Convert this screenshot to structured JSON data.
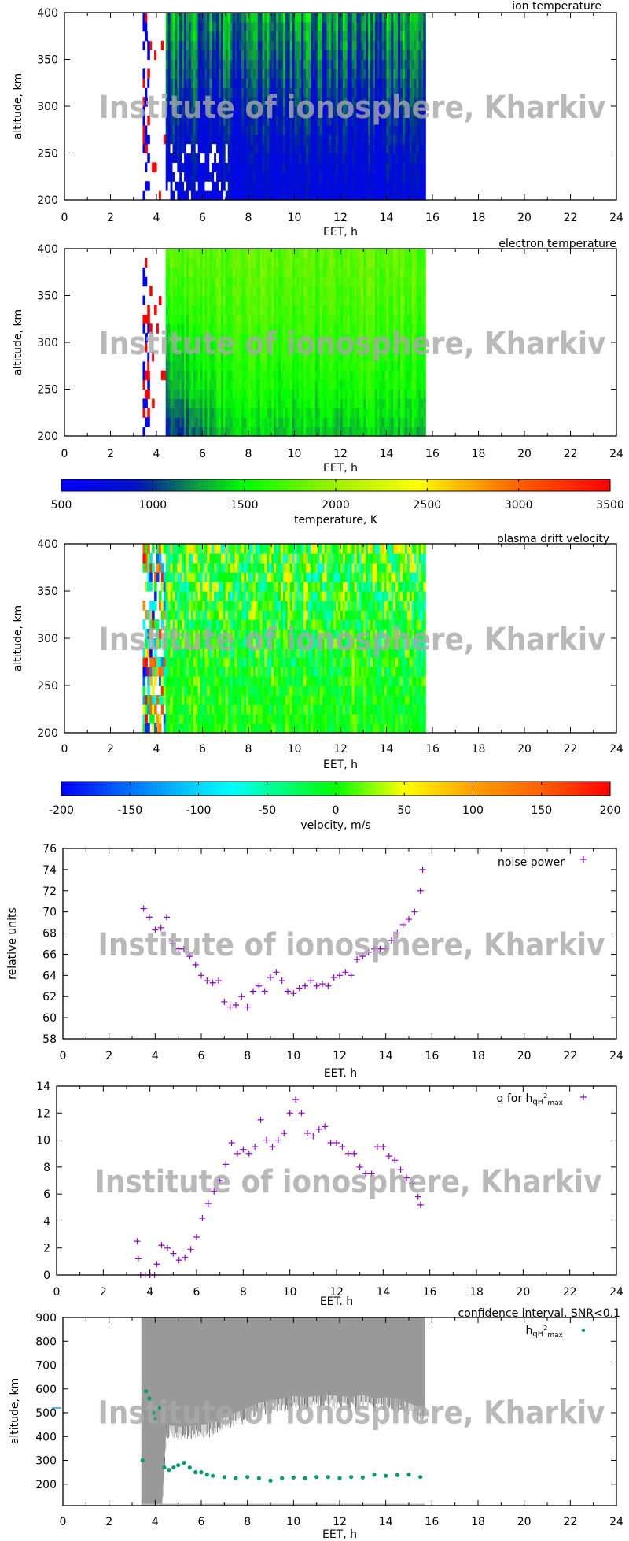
{
  "watermark": "Institute of ionosphere, Kharkiv",
  "chart_data": [
    {
      "type": "heatmap",
      "title": "ion temperature",
      "xlabel": "EET, h",
      "ylabel": "altitude, km",
      "xlim": [
        0,
        24
      ],
      "ylim": [
        200,
        400
      ],
      "xticks": [
        0,
        2,
        4,
        6,
        8,
        10,
        12,
        14,
        16,
        18,
        20,
        22,
        24
      ],
      "yticks": [
        200,
        250,
        300,
        350,
        400
      ],
      "data_time_range_h": [
        3.4,
        15.7
      ],
      "colorbar": "temperature",
      "profile": {
        "altitude_km": [
          200,
          250,
          300,
          350,
          400
        ],
        "typical_value": [
          750,
          850,
          950,
          1100,
          1250
        ]
      }
    },
    {
      "type": "heatmap",
      "title": "electron temperature",
      "xlabel": "EET, h",
      "ylabel": "altitude, km",
      "xlim": [
        0,
        24
      ],
      "ylim": [
        200,
        400
      ],
      "xticks": [
        0,
        2,
        4,
        6,
        8,
        10,
        12,
        14,
        16,
        18,
        20,
        22,
        24
      ],
      "yticks": [
        200,
        250,
        300,
        350,
        400
      ],
      "data_time_range_h": [
        3.4,
        15.7
      ],
      "colorbar": "temperature",
      "profile": {
        "altitude_km": [
          200,
          250,
          300,
          350,
          400
        ],
        "typical_value": [
          1350,
          1550,
          1650,
          1750,
          1800
        ]
      }
    },
    {
      "type": "colorbar",
      "label": "temperature, K",
      "range": [
        500,
        3500
      ],
      "ticks": [
        500,
        1000,
        1500,
        2000,
        2500,
        3000,
        3500
      ],
      "colormap": [
        [
          500,
          "#0000ff"
        ],
        [
          900,
          "#0010c8"
        ],
        [
          1000,
          "#003090"
        ],
        [
          1250,
          "#10a040"
        ],
        [
          1500,
          "#00ff00"
        ],
        [
          2000,
          "#a0f000"
        ],
        [
          2450,
          "#ffff00"
        ],
        [
          2600,
          "#ffd000"
        ],
        [
          3000,
          "#ff6000"
        ],
        [
          3500,
          "#ff0000"
        ]
      ]
    },
    {
      "type": "heatmap",
      "title": "plasma drift velocity",
      "xlabel": "EET, h",
      "ylabel": "altitude, km",
      "xlim": [
        0,
        24
      ],
      "ylim": [
        200,
        400
      ],
      "xticks": [
        0,
        2,
        4,
        6,
        8,
        10,
        12,
        14,
        16,
        18,
        20,
        22,
        24
      ],
      "yticks": [
        200,
        250,
        300,
        350,
        400
      ],
      "data_time_range_h": [
        3.4,
        15.7
      ],
      "colorbar": "velocity",
      "profile": {
        "altitude_km": [
          200,
          250,
          300,
          350,
          400
        ],
        "typical_value": [
          0,
          -5,
          -10,
          -5,
          0
        ]
      }
    },
    {
      "type": "colorbar",
      "label": "velocity, m/s",
      "range": [
        -200,
        200
      ],
      "ticks": [
        -200,
        -150,
        -100,
        -50,
        0,
        50,
        100,
        150,
        200
      ],
      "colormap": [
        [
          -200,
          "#0000ff"
        ],
        [
          -150,
          "#0070ff"
        ],
        [
          -100,
          "#00d8ff"
        ],
        [
          -75,
          "#00ffff"
        ],
        [
          -50,
          "#00ffa0"
        ],
        [
          0,
          "#00ff00"
        ],
        [
          50,
          "#ffff00"
        ],
        [
          100,
          "#ffa000"
        ],
        [
          150,
          "#ff6000"
        ],
        [
          200,
          "#ff0000"
        ]
      ]
    },
    {
      "type": "scatter",
      "xlabel": "EET. h",
      "ylabel": "relative units",
      "xlim": [
        0,
        24
      ],
      "ylim": [
        58,
        76
      ],
      "xticks": [
        0,
        2,
        4,
        6,
        8,
        10,
        12,
        14,
        16,
        18,
        20,
        22,
        24
      ],
      "yticks": [
        58,
        60,
        62,
        64,
        66,
        68,
        70,
        72,
        74,
        76
      ],
      "legend_position": "top-right",
      "series": [
        {
          "name": "noise power",
          "color": "#9400d3",
          "marker": "plus",
          "x": [
            3.5,
            3.75,
            4.0,
            4.25,
            4.5,
            4.75,
            5.0,
            5.25,
            5.5,
            5.75,
            6.0,
            6.25,
            6.5,
            6.75,
            7.0,
            7.25,
            7.5,
            7.75,
            8.0,
            8.25,
            8.5,
            8.75,
            9.0,
            9.25,
            9.5,
            9.75,
            10.0,
            10.25,
            10.5,
            10.75,
            11.0,
            11.25,
            11.5,
            11.75,
            12.0,
            12.25,
            12.5,
            12.75,
            13.0,
            13.25,
            13.5,
            13.75,
            14.0,
            14.25,
            14.5,
            14.75,
            15.0,
            15.25,
            15.5,
            15.6
          ],
          "y": [
            70.3,
            69.5,
            68.3,
            68.5,
            69.5,
            67.0,
            66.5,
            66.5,
            65.8,
            65.0,
            64.0,
            63.5,
            63.3,
            63.5,
            61.5,
            61.0,
            61.2,
            62.0,
            61.0,
            62.5,
            63.0,
            62.5,
            63.8,
            64.3,
            63.5,
            62.5,
            62.3,
            62.8,
            63.0,
            63.5,
            63.0,
            63.2,
            63.0,
            63.8,
            64.0,
            64.3,
            64.0,
            65.5,
            65.8,
            66.2,
            66.5,
            66.5,
            66.5,
            67.3,
            68.0,
            68.8,
            69.3,
            70.0,
            72.0,
            74.0
          ]
        }
      ]
    },
    {
      "type": "scatter",
      "xlabel": "EET. h",
      "xlim": [
        0,
        24
      ],
      "ylim": [
        0,
        14
      ],
      "xticks": [
        0,
        2,
        4,
        6,
        8,
        10,
        12,
        14,
        16,
        18,
        20,
        22,
        24
      ],
      "yticks": [
        0,
        2,
        4,
        6,
        8,
        10,
        12,
        14
      ],
      "legend_position": "top-right",
      "series": [
        {
          "name": "q for h",
          "name_sub": "qH",
          "name_sup": "2",
          "name_sub2": "max",
          "color": "#9400d3",
          "marker": "plus",
          "x": [
            3.45,
            3.5,
            3.6,
            3.8,
            4.0,
            4.2,
            4.3,
            4.5,
            4.75,
            5.0,
            5.25,
            5.5,
            5.75,
            6.0,
            6.25,
            6.5,
            6.75,
            7.0,
            7.25,
            7.5,
            7.75,
            8.0,
            8.25,
            8.5,
            8.75,
            9.0,
            9.25,
            9.5,
            9.75,
            10.0,
            10.25,
            10.5,
            10.75,
            11.0,
            11.25,
            11.5,
            11.75,
            12.0,
            12.25,
            12.5,
            12.75,
            13.0,
            13.25,
            13.5,
            13.75,
            14.0,
            14.25,
            14.5,
            14.75,
            15.0,
            15.25,
            15.5,
            15.6
          ],
          "y": [
            2.5,
            1.2,
            0,
            0,
            0,
            0,
            0.8,
            2.2,
            2.0,
            1.6,
            1.1,
            1.3,
            1.9,
            2.8,
            4.2,
            5.3,
            6.2,
            7.0,
            8.2,
            9.8,
            9.0,
            9.3,
            9.0,
            9.5,
            11.5,
            10.0,
            9.5,
            10.0,
            10.5,
            12.0,
            13.0,
            12.0,
            10.5,
            10.3,
            10.8,
            11.0,
            9.8,
            9.8,
            9.5,
            9.0,
            9.0,
            8.0,
            7.5,
            7.5,
            9.5,
            9.5,
            8.8,
            8.5,
            7.8,
            7.2,
            6.8,
            5.8,
            5.2
          ]
        }
      ]
    },
    {
      "type": "scatter",
      "title": "confidence interval, SNR<0.1",
      "xlabel": "EET, h",
      "ylabel": "altitude, km",
      "xlim": [
        0,
        24
      ],
      "ylim": [
        110,
        900
      ],
      "xticks": [
        0,
        2,
        4,
        6,
        8,
        10,
        12,
        14,
        16,
        18,
        20,
        22,
        24
      ],
      "yticks": [
        200,
        300,
        400,
        500,
        600,
        700,
        800,
        900
      ],
      "legend_position": "top-right",
      "confidence_interval": {
        "color": "#999999",
        "x": [
          3.4,
          3.6,
          3.8,
          4.0,
          4.3,
          4.5,
          5.0,
          5.5,
          6.0,
          6.5,
          7.0,
          7.5,
          8.0,
          8.5,
          9.0,
          9.5,
          10.0,
          10.5,
          11.0,
          11.5,
          12.0,
          12.5,
          13.0,
          13.5,
          14.0,
          14.5,
          15.0,
          15.5,
          15.7
        ],
        "upper_band_bottom_km": [
          110,
          110,
          110,
          110,
          110,
          450,
          440,
          445,
          450,
          455,
          480,
          500,
          520,
          540,
          550,
          560,
          570,
          565,
          570,
          575,
          570,
          565,
          575,
          560,
          565,
          560,
          540,
          520,
          510
        ],
        "lower_band_km": [
          110,
          118
        ]
      },
      "series": [
        {
          "name": "h",
          "name_sub": "qH",
          "name_sup": "2",
          "name_sub2": "max",
          "color": "#009e73",
          "marker": "dot",
          "x": [
            3.45,
            3.6,
            3.75,
            3.9,
            4.0,
            4.2,
            4.4,
            4.6,
            4.8,
            5.0,
            5.25,
            5.5,
            5.75,
            6.0,
            6.25,
            6.5,
            7.0,
            7.5,
            8.0,
            8.5,
            9.0,
            9.5,
            10.0,
            10.5,
            11.0,
            11.5,
            12.0,
            12.5,
            13.0,
            13.5,
            14.0,
            14.5,
            15.0,
            15.5
          ],
          "y": [
            300,
            590,
            560,
            500,
            470,
            520,
            270,
            260,
            270,
            280,
            290,
            270,
            250,
            250,
            240,
            235,
            230,
            225,
            230,
            225,
            215,
            225,
            228,
            225,
            230,
            230,
            225,
            230,
            228,
            240,
            235,
            238,
            240,
            230
          ]
        }
      ]
    }
  ]
}
